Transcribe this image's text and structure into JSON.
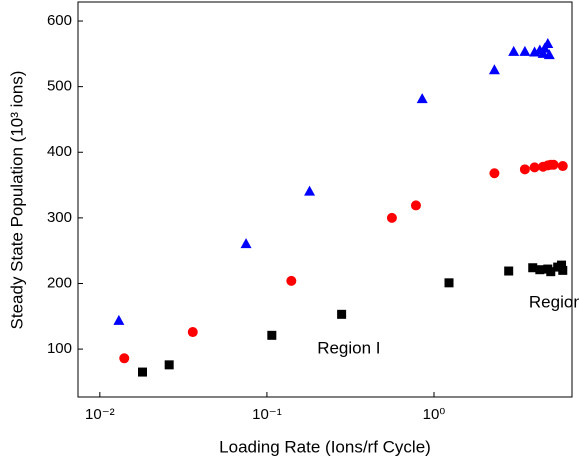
{
  "chart_data": {
    "type": "scatter",
    "xlabel": "Loading Rate (Ions/rf Cycle)",
    "ylabel": "Steady State Population (10³ ions)",
    "xscale": "log",
    "xlim": [
      0.0074,
      6.7
    ],
    "ylim": [
      27,
      629
    ],
    "xticks": [
      {
        "value": 0.01,
        "label": "10⁻²"
      },
      {
        "value": 0.1,
        "label": "10⁻¹"
      },
      {
        "value": 1,
        "label": "10⁰"
      }
    ],
    "yticks": [
      100,
      200,
      300,
      400,
      500,
      600
    ],
    "annotations": [
      {
        "text": "Region I",
        "x": 0.2,
        "y": 100
      },
      {
        "text": "Region II",
        "x": 3.7,
        "y": 170
      }
    ],
    "series": [
      {
        "color": "#0000ff",
        "marker": "triangle",
        "x": [
          0.013,
          0.075,
          0.18,
          0.85,
          2.3,
          3.0,
          3.5,
          4.0,
          4.3,
          4.5,
          4.6,
          4.8,
          4.9
        ],
        "values": [
          143,
          260,
          340,
          481,
          525,
          553,
          553,
          552,
          555,
          550,
          558,
          565,
          548
        ]
      },
      {
        "color": "#ff0000",
        "marker": "circle",
        "x": [
          0.014,
          0.036,
          0.14,
          0.56,
          0.78,
          2.3,
          3.5,
          4.0,
          4.5,
          4.8,
          5.0,
          5.2,
          5.9
        ],
        "values": [
          86,
          126,
          204,
          300,
          319,
          368,
          374,
          377,
          378,
          380,
          381,
          381,
          379
        ]
      },
      {
        "color": "#000000",
        "marker": "square",
        "x": [
          0.018,
          0.026,
          0.107,
          0.28,
          1.23,
          2.8,
          3.9,
          4.3,
          4.8,
          5.0,
          5.5,
          5.8,
          5.9
        ],
        "values": [
          65,
          76,
          121,
          153,
          201,
          219,
          224,
          221,
          222,
          218,
          225,
          228,
          220
        ]
      }
    ]
  }
}
